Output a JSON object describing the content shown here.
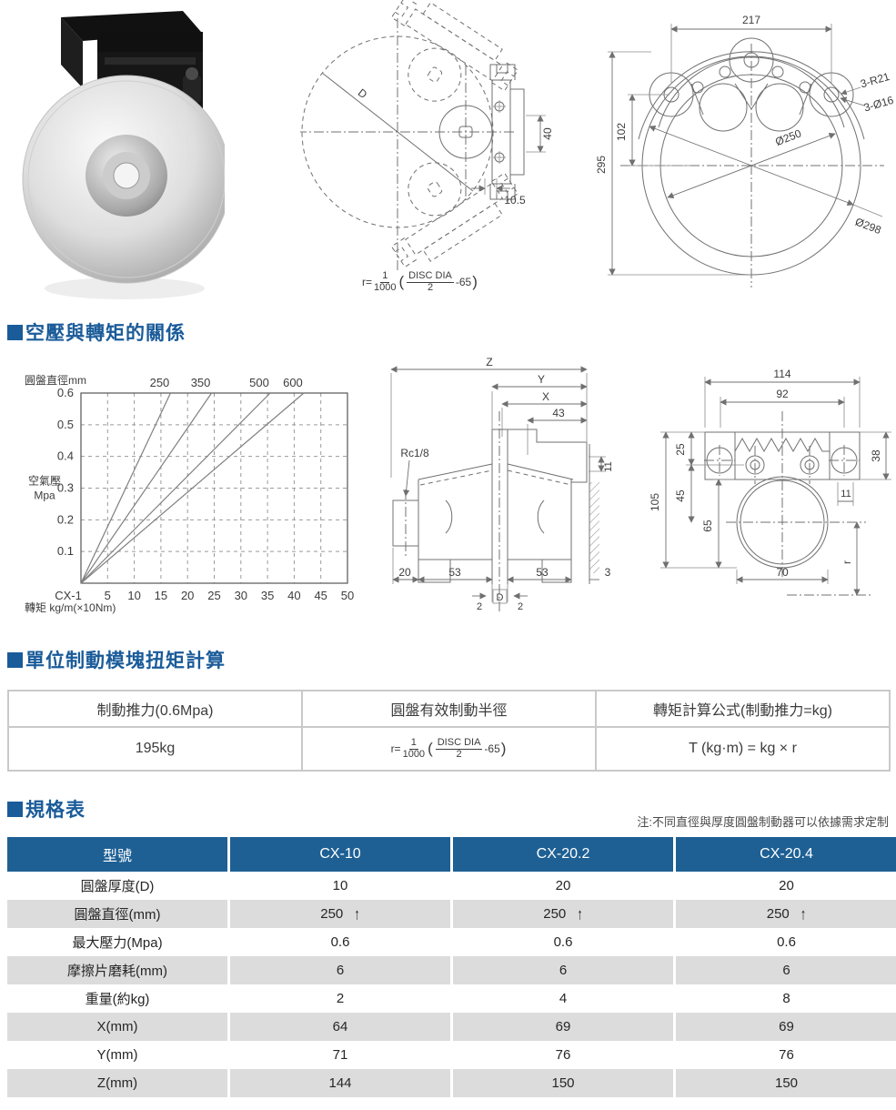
{
  "page": {
    "accent_blue": "#1a5b99",
    "table_header_blue": "#1e6094",
    "row_gray": "#dcdcdc"
  },
  "sections": {
    "pressure_torque": {
      "title": "空壓與轉矩的關係"
    },
    "unit_module": {
      "title": "單位制動模塊扭矩計算"
    },
    "spec": {
      "title": "規格表",
      "note": "注:不同直徑與厚度圓盤制動器可以依據需求定制"
    }
  },
  "formula": {
    "lead": "r=",
    "num": "1",
    "den": "1000",
    "open": "(",
    "frac_num": "DISC DIA",
    "frac_den": "2",
    "tail": "-65",
    "close": ")"
  },
  "drawings": {
    "photo": {
      "name": "氣動碟式制動器產品照片"
    },
    "plan": {
      "d_label": "D",
      "dim_40": "40",
      "dim_10_5": "10.5"
    },
    "front": {
      "dim_217": "217",
      "dim_295": "295",
      "dim_102": "102",
      "dia_250": "Ø250",
      "dia_298": "Ø298",
      "label_3r21": "3-R21",
      "label_3d16": "3-Ø16"
    },
    "section": {
      "z": "Z",
      "y": "Y",
      "x": "X",
      "dim_43": "43",
      "rc": "Rc1/8",
      "dim_11": "11",
      "dim_20": "20",
      "dim_53a": "53",
      "dim_53b": "53",
      "dim_3": "3",
      "dim_2a": "2",
      "d": "D",
      "dim_2b": "2"
    },
    "side": {
      "dim_114": "114",
      "dim_92": "92",
      "dim_25": "25",
      "dim_45": "45",
      "dim_65": "65",
      "dim_105": "105",
      "dim_38": "38",
      "dim_11": "11",
      "dim_70": "70",
      "r": "r"
    }
  },
  "chart_data": {
    "type": "line",
    "title": "圓盤直徑mm",
    "ylabel": [
      "空氣壓",
      "Mpa"
    ],
    "xlabel": "轉矩 kg/m(×10Nm)",
    "origin_label": "CX-1",
    "x_ticks": [
      5,
      10,
      15,
      20,
      25,
      30,
      35,
      40,
      45,
      50
    ],
    "y_ticks": [
      0.1,
      0.2,
      0.3,
      0.4,
      0.5,
      0.6
    ],
    "xlim": [
      0,
      50
    ],
    "ylim": [
      0,
      0.6
    ],
    "grid": "dashed",
    "legend_position": "top",
    "series": [
      {
        "name": "250",
        "points": [
          [
            0,
            0
          ],
          [
            16.8,
            0.6
          ]
        ]
      },
      {
        "name": "350",
        "points": [
          [
            0,
            0
          ],
          [
            24.5,
            0.6
          ]
        ]
      },
      {
        "name": "500",
        "points": [
          [
            0,
            0
          ],
          [
            35.5,
            0.6
          ]
        ]
      },
      {
        "name": "600",
        "points": [
          [
            0,
            0
          ],
          [
            41.8,
            0.6
          ]
        ]
      }
    ]
  },
  "torque_table": {
    "headers": [
      "制動推力(0.6Mpa)",
      "圓盤有效制動半徑",
      "轉矩計算公式(制動推力=kg)"
    ],
    "thrust_value": "195kg",
    "torque_formula": "T (kg·m) = kg × r"
  },
  "spec_table": {
    "headers": [
      "型號",
      "CX-10",
      "CX-20.2",
      "CX-20.4"
    ],
    "rows": [
      {
        "label": "圓盤厚度(D)",
        "values": [
          "10",
          "20",
          "20"
        ],
        "arrow": false
      },
      {
        "label": "圓盤直徑(mm)",
        "values": [
          "250",
          "250",
          "250"
        ],
        "arrow": true
      },
      {
        "label": "最大壓力(Mpa)",
        "values": [
          "0.6",
          "0.6",
          "0.6"
        ],
        "arrow": false
      },
      {
        "label": "摩擦片磨耗(mm)",
        "values": [
          "6",
          "6",
          "6"
        ],
        "arrow": false
      },
      {
        "label": "重量(約kg)",
        "values": [
          "2",
          "4",
          "8"
        ],
        "arrow": false
      },
      {
        "label": "X(mm)",
        "values": [
          "64",
          "69",
          "69"
        ],
        "arrow": false
      },
      {
        "label": "Y(mm)",
        "values": [
          "71",
          "76",
          "76"
        ],
        "arrow": false
      },
      {
        "label": "Z(mm)",
        "values": [
          "144",
          "150",
          "150"
        ],
        "arrow": false
      }
    ]
  }
}
